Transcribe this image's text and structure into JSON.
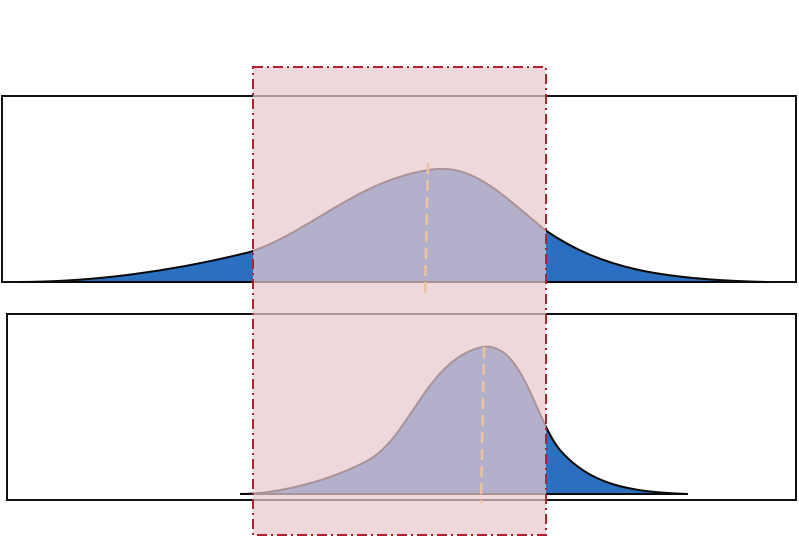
{
  "diagram": {
    "type": "distribution-comparison",
    "panels": [
      {
        "name": "upper-distribution",
        "shape": "wide-bell",
        "skew": "slight-left"
      },
      {
        "name": "lower-distribution",
        "shape": "narrow-bell",
        "skew": "left"
      }
    ],
    "colors": {
      "fill": "#2a6fc0",
      "curve_stroke": "#0a0a0a",
      "frame_stroke": "#111111",
      "highlight_fill": "#e9c9cf",
      "highlight_stroke": "#b3202e",
      "peak_marker": "#f2b21c"
    }
  }
}
